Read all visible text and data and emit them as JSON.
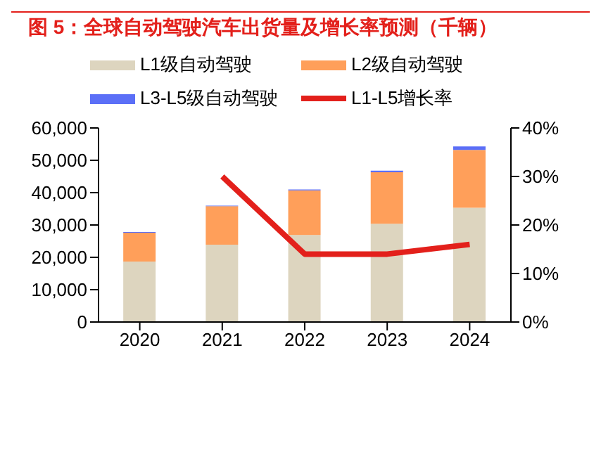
{
  "chart_data": {
    "type": "bar",
    "title": "图 5：全球自动驾驶汽车出货量及增长率预测（千辆）",
    "categories": [
      "2020",
      "2021",
      "2022",
      "2023",
      "2024"
    ],
    "stacked": true,
    "legend": "top",
    "grid": false,
    "series": [
      {
        "name": "L1级自动驾驶",
        "color": "#ddd5bf",
        "values": [
          18700,
          23900,
          26900,
          30400,
          35300
        ]
      },
      {
        "name": "L2级自动驾驶",
        "color": "#ff9f5a",
        "values": [
          8900,
          11900,
          13800,
          15900,
          17900
        ]
      },
      {
        "name": "L3-L5级自动驾驶",
        "color": "#5b6ff7",
        "values": [
          200,
          200,
          300,
          500,
          1100
        ]
      },
      {
        "name": "L1-L5增长率",
        "type": "line",
        "axis": "y2",
        "color": "#e3201b",
        "values": [
          null,
          30,
          14,
          14,
          16
        ]
      }
    ],
    "ylim": [
      0,
      60000
    ],
    "yticks": [
      {
        "value": 0,
        "label": "0"
      },
      {
        "value": 10000,
        "label": "10,000"
      },
      {
        "value": 20000,
        "label": "20,000"
      },
      {
        "value": 30000,
        "label": "30,000"
      },
      {
        "value": 40000,
        "label": "40,000"
      },
      {
        "value": 50000,
        "label": "50,000"
      },
      {
        "value": 60000,
        "label": "60,000"
      }
    ],
    "y2lim": [
      0,
      40
    ],
    "y2ticks": [
      {
        "value": 0,
        "label": "0%"
      },
      {
        "value": 10,
        "label": "10%"
      },
      {
        "value": 20,
        "label": "20%"
      },
      {
        "value": 30,
        "label": "30%"
      },
      {
        "value": 40,
        "label": "40%"
      }
    ]
  }
}
